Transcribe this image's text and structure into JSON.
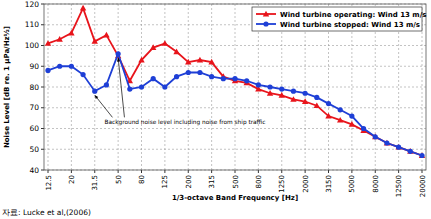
{
  "chart_data": {
    "type": "line",
    "x_label": "1/3-octave Band Frequency [Hz]",
    "y_label": "Noise Level [dB re. 1 μPa/Hz½]",
    "annotation": "Background noise level including noise from ship traffic",
    "source": "자료: Lucke et al,(2006)",
    "categories": [
      "12.5",
      null,
      "20",
      null,
      "31.5",
      null,
      "50",
      null,
      "80",
      null,
      "125",
      null,
      "200",
      null,
      "315",
      null,
      "500",
      null,
      "800",
      null,
      "1250",
      null,
      "2000",
      null,
      "3150",
      null,
      "5000",
      null,
      "8000",
      null,
      "12500",
      null,
      "20000"
    ],
    "series": [
      {
        "name": "Wind turbine operating: Wind 13 m/s",
        "color": "#e8141b",
        "marker": "triangle",
        "values": [
          101,
          103,
          106,
          118,
          102,
          105,
          95,
          83,
          93,
          99,
          101,
          97,
          92,
          93,
          92,
          85,
          83,
          82,
          79,
          77,
          76,
          74,
          73,
          71,
          66,
          64,
          62,
          59,
          56,
          53,
          51,
          49,
          47
        ]
      },
      {
        "name": "Wind turbine stopped: Wind 13 m/s",
        "color": "#1e3fd6",
        "marker": "circle",
        "values": [
          88,
          90,
          90,
          86,
          78,
          81,
          96,
          79,
          80,
          84,
          80,
          85,
          87,
          87,
          85,
          84,
          84,
          83,
          81,
          80,
          79,
          78,
          77,
          75,
          72,
          69,
          66,
          60,
          56,
          53,
          51,
          49,
          47
        ]
      }
    ],
    "ylim": [
      40,
      120
    ],
    "yticks": [
      40,
      50,
      60,
      70,
      80,
      90,
      100,
      110,
      120
    ],
    "grid": true,
    "legend": "upper right"
  }
}
